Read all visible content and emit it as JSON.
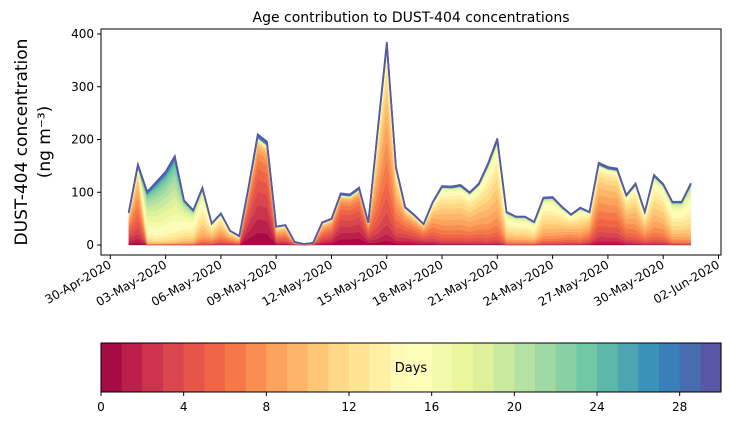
{
  "chart_data": {
    "type": "area",
    "stacked": true,
    "title": "Age contribution to DUST-404 concentrations",
    "ylabel_line1": "DUST-404 concentration",
    "ylabel_line2": "(ng m⁻³)",
    "xlabel": "",
    "ylim": [
      0,
      410
    ],
    "yticks": [
      0,
      100,
      200,
      300,
      400
    ],
    "x_start": "01-May-2020 00:00",
    "x_step_hours": 12,
    "xlim_days_from_30apr": [
      -0.05,
      33.6
    ],
    "xticks": [
      {
        "day": 0,
        "label": "30-Apr-2020"
      },
      {
        "day": 3,
        "label": "03-May-2020"
      },
      {
        "day": 6,
        "label": "06-May-2020"
      },
      {
        "day": 9,
        "label": "09-May-2020"
      },
      {
        "day": 12,
        "label": "12-May-2020"
      },
      {
        "day": 15,
        "label": "15-May-2020"
      },
      {
        "day": 18,
        "label": "18-May-2020"
      },
      {
        "day": 21,
        "label": "21-May-2020"
      },
      {
        "day": 24,
        "label": "24-May-2020"
      },
      {
        "day": 27,
        "label": "27-May-2020"
      },
      {
        "day": 30,
        "label": "30-May-2020"
      },
      {
        "day": 33,
        "label": "02-Jun-2020"
      }
    ],
    "total": [
      62,
      153,
      101,
      120,
      139,
      169,
      85,
      66,
      109,
      41,
      60,
      27,
      17,
      110,
      210,
      196,
      35,
      38,
      6,
      2,
      4,
      43,
      50,
      98,
      96,
      109,
      43,
      215,
      385,
      148,
      72,
      57,
      40,
      82,
      112,
      111,
      114,
      100,
      117,
      155,
      202,
      63,
      54,
      54,
      44,
      90,
      91,
      73,
      58,
      71,
      63,
      156,
      148,
      145,
      95,
      117,
      63,
      133,
      116,
      82,
      82,
      117
    ],
    "dominant_age_days": [
      5,
      6,
      17,
      18,
      18,
      18,
      15,
      14,
      12,
      10,
      9,
      8,
      8,
      2,
      2,
      2,
      6,
      6,
      6,
      6,
      6,
      5,
      4,
      2,
      2,
      2,
      3,
      7,
      7,
      7,
      5,
      5,
      5,
      7,
      9,
      9,
      9,
      9,
      9,
      10,
      10,
      12,
      12,
      12,
      12,
      11,
      11,
      10,
      9,
      10,
      8,
      7,
      7,
      7,
      8,
      9,
      9,
      10,
      10,
      12,
      12,
      13
    ],
    "age_spread_days": 4,
    "colorbar": {
      "label": "Days",
      "range": [
        0,
        30
      ],
      "n_bins": 30,
      "ticks": [
        0,
        4,
        8,
        12,
        16,
        20,
        24,
        28
      ],
      "colormap_stops": [
        "#9e0142",
        "#d53e4f",
        "#f46d43",
        "#fdae61",
        "#fee08b",
        "#ffffbf",
        "#e6f598",
        "#abdda4",
        "#66c2a5",
        "#3288bd",
        "#5e4fa2"
      ]
    }
  }
}
